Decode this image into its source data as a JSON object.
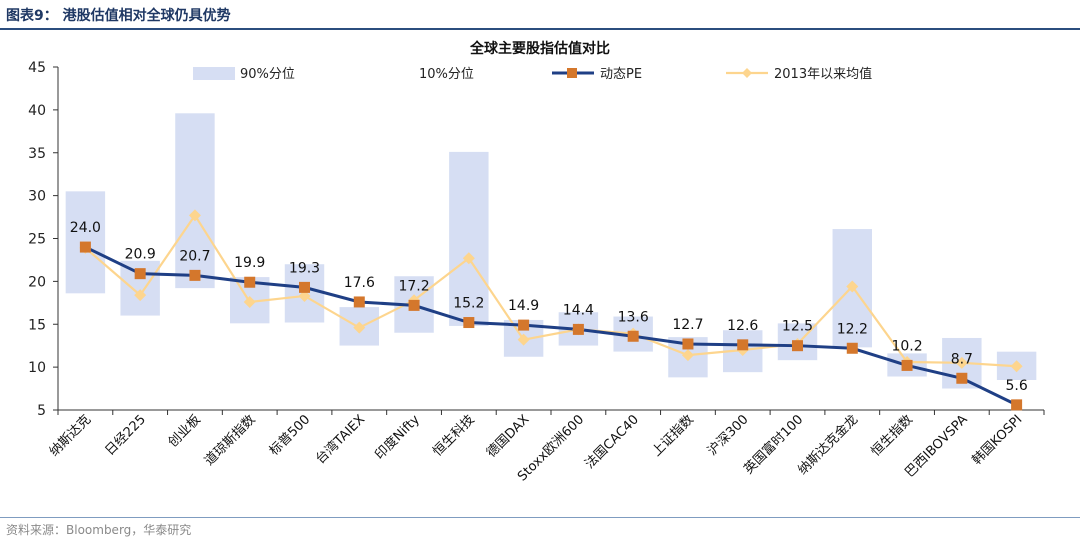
{
  "header": {
    "figure_title": "图表9：  港股估值相对全球仍具优势"
  },
  "footer": {
    "source": "资料来源：Bloomberg，华泰研究"
  },
  "colors": {
    "band_90": "#d6def3",
    "band_10": "#ffffff",
    "pe_line": "#1f3f85",
    "pe_marker": "#d4772c",
    "avg_line": "#fdd58e",
    "axis": "#333333",
    "header_rule": "#2b4d7e"
  },
  "chart_data": {
    "type": "line",
    "title": "全球主要股指估值对比",
    "xlabel": "",
    "ylabel": "",
    "ylim": [
      5,
      45
    ],
    "yticks": [
      5,
      10,
      15,
      20,
      25,
      30,
      35,
      40,
      45
    ],
    "grid": false,
    "legend_position": "top",
    "categories": [
      "纳斯达克",
      "日经225",
      "创业板",
      "道琼斯指数",
      "标普500",
      "台湾TAIEX",
      "印度Nifty",
      "恒生科技",
      "德国DAX",
      "Stoxx欧洲600",
      "法国CAC40",
      "上证指数",
      "沪深300",
      "英国富时100",
      "纳斯达克金龙",
      "恒生指数",
      "巴西IBOVSPA",
      "韩国KOSPI"
    ],
    "series": [
      {
        "name": "90%分位",
        "kind": "band-top",
        "values": [
          30.5,
          22.4,
          39.6,
          20.5,
          22.0,
          17.0,
          20.6,
          35.1,
          15.5,
          16.4,
          15.9,
          13.5,
          14.3,
          15.1,
          26.1,
          11.6,
          13.4,
          11.8
        ]
      },
      {
        "name": "10%分位",
        "kind": "band-bottom",
        "values": [
          18.6,
          16.0,
          19.2,
          15.1,
          15.2,
          12.5,
          14.0,
          14.8,
          11.2,
          12.5,
          11.8,
          8.8,
          9.4,
          10.8,
          12.3,
          8.9,
          7.5,
          8.5
        ]
      },
      {
        "name": "动态PE",
        "kind": "line-marker",
        "values": [
          24.0,
          20.9,
          20.7,
          19.9,
          19.3,
          17.6,
          17.2,
          15.2,
          14.9,
          14.4,
          13.6,
          12.7,
          12.6,
          12.5,
          12.2,
          10.2,
          8.7,
          5.6
        ],
        "labels": [
          "24.0",
          "20.9",
          "20.7",
          "19.9",
          "19.3",
          "17.6",
          "17.2",
          "15.2",
          "14.9",
          "14.4",
          "13.6",
          "12.7",
          "12.6",
          "12.5",
          "12.2",
          "10.2",
          "8.7",
          "5.6"
        ]
      },
      {
        "name": "2013年以来均值",
        "kind": "line-diamond",
        "values": [
          23.9,
          18.4,
          27.7,
          17.6,
          18.3,
          14.6,
          17.8,
          22.7,
          13.2,
          14.4,
          13.9,
          11.4,
          12.0,
          12.7,
          19.4,
          10.6,
          10.5,
          10.1
        ]
      }
    ]
  }
}
